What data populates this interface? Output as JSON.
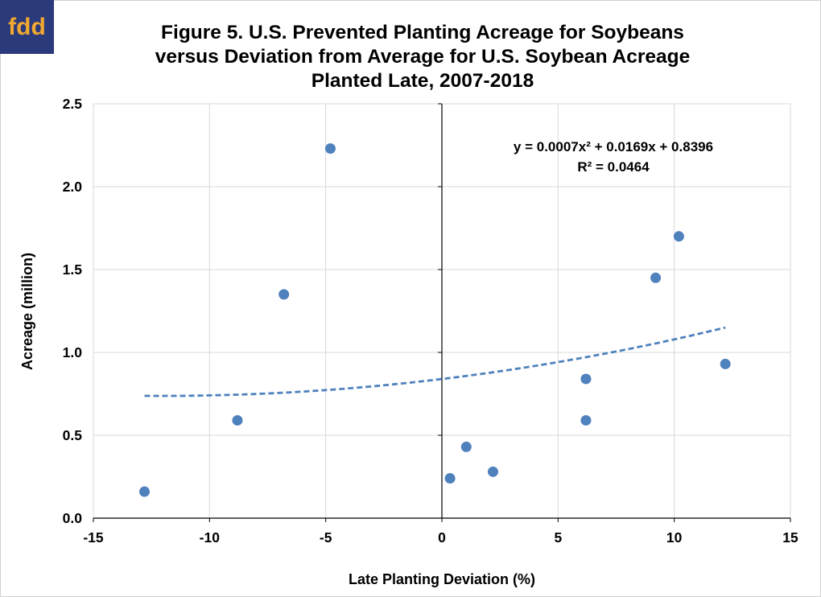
{
  "logo": {
    "text": "fdd"
  },
  "chart_data": {
    "type": "scatter",
    "title_lines": [
      "Figure 5. U.S. Prevented Planting Acreage for Soybeans",
      "versus Deviation from Average for U.S. Soybean Acreage",
      "Planted Late,  2007-2018"
    ],
    "xlabel": "Late Planting Deviation (%)",
    "ylabel": "Acreage (million)",
    "xlim": [
      -15,
      15
    ],
    "ylim": [
      0,
      2.5
    ],
    "x_ticks": [
      "-15",
      "-10",
      "-5",
      "0",
      "5",
      "10",
      "15"
    ],
    "y_ticks": [
      "0.0",
      "0.5",
      "1.0",
      "1.5",
      "2.0",
      "2.5"
    ],
    "grid": true,
    "points": [
      {
        "x": -12.8,
        "y": 0.16
      },
      {
        "x": -8.8,
        "y": 0.59
      },
      {
        "x": -6.8,
        "y": 1.35
      },
      {
        "x": -4.8,
        "y": 2.23
      },
      {
        "x": 0.35,
        "y": 0.24
      },
      {
        "x": 1.05,
        "y": 0.43
      },
      {
        "x": 2.2,
        "y": 0.28
      },
      {
        "x": 6.2,
        "y": 0.59
      },
      {
        "x": 6.2,
        "y": 0.84
      },
      {
        "x": 9.2,
        "y": 1.45
      },
      {
        "x": 10.2,
        "y": 1.7
      },
      {
        "x": 12.2,
        "y": 0.93
      }
    ],
    "trendline": {
      "type": "polynomial",
      "coefficients": [
        0.0007,
        0.0169,
        0.8396
      ],
      "x_range": [
        -12.8,
        12.2
      ],
      "equation": "y = 0.0007x² + 0.0169x + 0.8396",
      "r_squared": "R² = 0.0464"
    },
    "colors": {
      "points": "#4f81bd",
      "trendline": "#4f81bd",
      "grid": "#d9d9d9",
      "axis": "#000000"
    }
  }
}
